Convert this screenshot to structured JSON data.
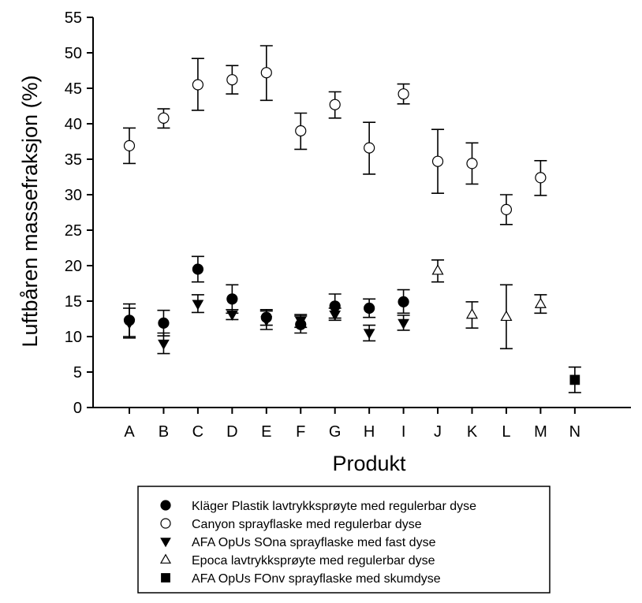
{
  "chart_data": {
    "type": "scatter",
    "xlabel": "Produkt",
    "ylabel": "Luftbåren massefraksjon (%)",
    "categories": [
      "A",
      "B",
      "C",
      "D",
      "E",
      "F",
      "G",
      "H",
      "I",
      "J",
      "K",
      "L",
      "M",
      "N"
    ],
    "ylim": [
      0,
      55
    ],
    "yticks": [
      0,
      5,
      10,
      15,
      20,
      25,
      30,
      35,
      40,
      45,
      50,
      55
    ],
    "grid": false,
    "legend_position": "bottom",
    "series": [
      {
        "name": "Kläger Plastik lavtrykksprøyte med regulerbar dyse",
        "marker": "circle-filled",
        "points": [
          {
            "x": "A",
            "y": 12.3,
            "err_low": 10.0,
            "err_high": 14.6
          },
          {
            "x": "B",
            "y": 11.9,
            "err_low": 10.1,
            "err_high": 13.7
          },
          {
            "x": "C",
            "y": 19.5,
            "err_low": 17.7,
            "err_high": 21.3
          },
          {
            "x": "D",
            "y": 15.3,
            "err_low": 13.3,
            "err_high": 17.3
          },
          {
            "x": "E",
            "y": 12.7,
            "err_low": 11.6,
            "err_high": 13.8
          },
          {
            "x": "F",
            "y": 11.7,
            "err_low": 10.5,
            "err_high": 12.9
          },
          {
            "x": "G",
            "y": 14.3,
            "err_low": 12.6,
            "err_high": 16.0
          },
          {
            "x": "H",
            "y": 14.0,
            "err_low": 12.7,
            "err_high": 15.3
          },
          {
            "x": "I",
            "y": 14.9,
            "err_low": 13.3,
            "err_high": 16.6
          }
        ]
      },
      {
        "name": "Canyon sprayflaske med regulerbar dyse",
        "marker": "circle-open",
        "points": [
          {
            "x": "A",
            "y": 36.9,
            "err_low": 34.4,
            "err_high": 39.4
          },
          {
            "x": "B",
            "y": 40.8,
            "err_low": 39.4,
            "err_high": 42.1
          },
          {
            "x": "C",
            "y": 45.5,
            "err_low": 41.9,
            "err_high": 49.2
          },
          {
            "x": "D",
            "y": 46.2,
            "err_low": 44.2,
            "err_high": 48.2
          },
          {
            "x": "E",
            "y": 47.2,
            "err_low": 43.3,
            "err_high": 51.0
          },
          {
            "x": "F",
            "y": 39.0,
            "err_low": 36.4,
            "err_high": 41.5
          },
          {
            "x": "G",
            "y": 42.7,
            "err_low": 40.8,
            "err_high": 44.5
          },
          {
            "x": "H",
            "y": 36.6,
            "err_low": 32.9,
            "err_high": 40.2
          },
          {
            "x": "I",
            "y": 44.2,
            "err_low": 42.8,
            "err_high": 45.6
          },
          {
            "x": "J",
            "y": 34.7,
            "err_low": 30.2,
            "err_high": 39.2
          },
          {
            "x": "K",
            "y": 34.4,
            "err_low": 31.5,
            "err_high": 37.3
          },
          {
            "x": "L",
            "y": 27.9,
            "err_low": 25.8,
            "err_high": 30.0
          },
          {
            "x": "M",
            "y": 32.4,
            "err_low": 29.9,
            "err_high": 34.8
          }
        ]
      },
      {
        "name": "AFA OpUs SOna sprayflaske med fast dyse",
        "marker": "triangle-down-filled",
        "points": [
          {
            "x": "A",
            "y": 11.9,
            "err_low": 9.8,
            "err_high": 14.0
          },
          {
            "x": "B",
            "y": 9.0,
            "err_low": 7.6,
            "err_high": 10.5
          },
          {
            "x": "C",
            "y": 14.6,
            "err_low": 13.4,
            "err_high": 15.9
          },
          {
            "x": "D",
            "y": 13.1,
            "err_low": 12.4,
            "err_high": 13.8
          },
          {
            "x": "E",
            "y": 12.3,
            "err_low": 11.0,
            "err_high": 13.6
          },
          {
            "x": "F",
            "y": 12.2,
            "err_low": 11.3,
            "err_high": 13.1
          },
          {
            "x": "G",
            "y": 13.1,
            "err_low": 12.3,
            "err_high": 14.0
          },
          {
            "x": "H",
            "y": 10.5,
            "err_low": 9.4,
            "err_high": 11.6
          },
          {
            "x": "I",
            "y": 11.9,
            "err_low": 10.9,
            "err_high": 13.0
          }
        ]
      },
      {
        "name": "Epoca lavtrykksprøyte med regulerbar dyse",
        "marker": "triangle-up-open",
        "points": [
          {
            "x": "J",
            "y": 19.3,
            "err_low": 17.7,
            "err_high": 20.8
          },
          {
            "x": "K",
            "y": 13.1,
            "err_low": 11.2,
            "err_high": 14.9
          },
          {
            "x": "L",
            "y": 12.8,
            "err_low": 8.3,
            "err_high": 17.3
          },
          {
            "x": "M",
            "y": 14.6,
            "err_low": 13.3,
            "err_high": 15.9
          }
        ]
      },
      {
        "name": "AFA OpUs FOnv sprayflaske med skumdyse",
        "marker": "square-filled",
        "points": [
          {
            "x": "N",
            "y": 3.9,
            "err_low": 2.1,
            "err_high": 5.7
          }
        ]
      }
    ]
  }
}
